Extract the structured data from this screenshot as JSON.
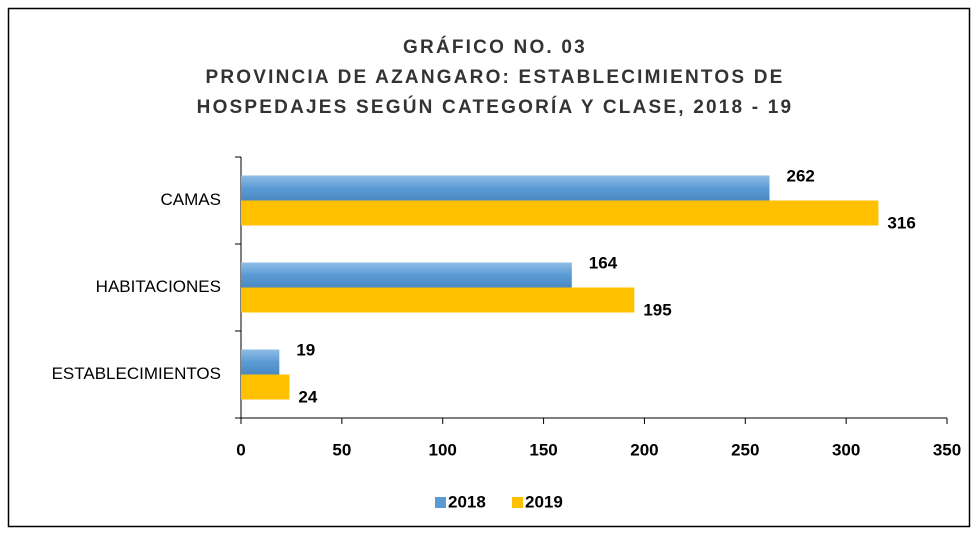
{
  "chart_data": {
    "type": "bar",
    "orientation": "horizontal",
    "title": [
      "GRÁFICO NO. 03",
      "PROVINCIA DE AZANGARO: ESTABLECIMIENTOS DE",
      "HOSPEDAJES SEGÚN CATEGORÍA Y CLASE, 2018 - 19"
    ],
    "categories": [
      "CAMAS",
      "HABITACIONES",
      "ESTABLECIMIENTOS"
    ],
    "series": [
      {
        "name": "2018",
        "color": "#5b9bd5",
        "values": [
          262,
          164,
          19
        ]
      },
      {
        "name": "2019",
        "color": "#ffc000",
        "values": [
          316,
          195,
          24
        ]
      }
    ],
    "xlim": [
      0,
      350
    ],
    "xticks": [
      0,
      50,
      100,
      150,
      200,
      250,
      300,
      350
    ],
    "legend": "bottom"
  }
}
